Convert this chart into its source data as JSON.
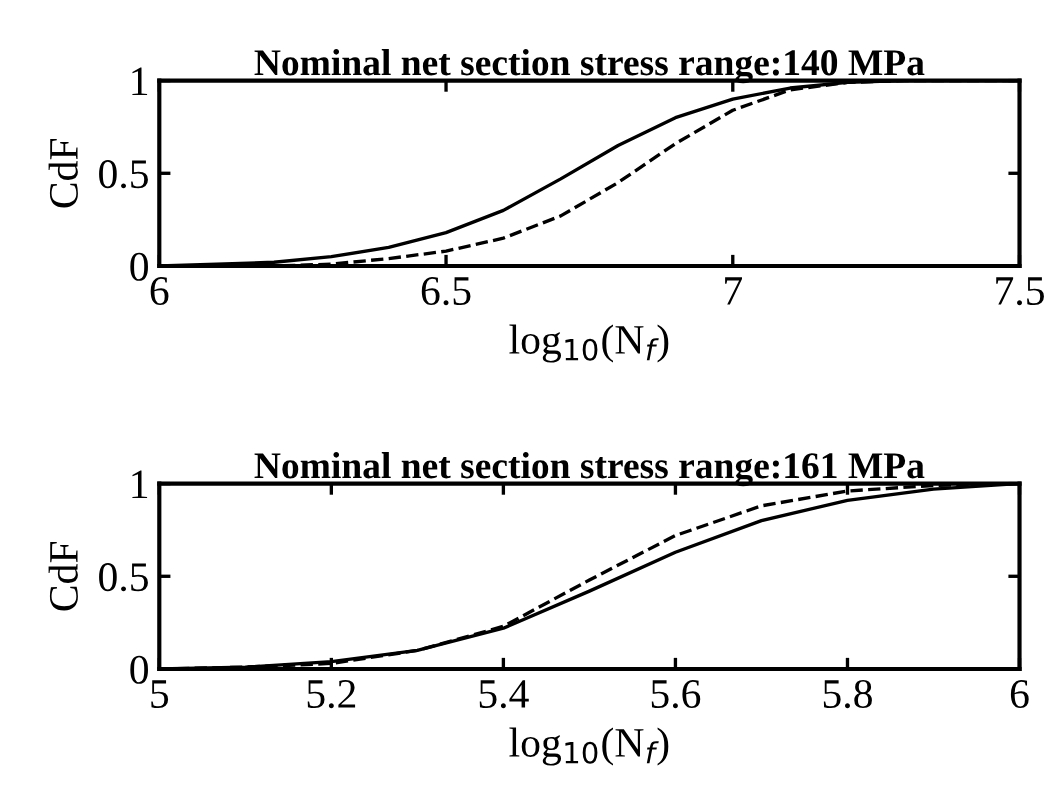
{
  "chart_data": [
    {
      "type": "line",
      "title": "Nominal net section stress range:140 MPa",
      "xlabel": "log$_{10}$(N$_{f}$)",
      "ylabel": "CdF",
      "xlim": [
        6,
        7.5
      ],
      "xticks": [
        6,
        6.5,
        7,
        7.5
      ],
      "ylim": [
        0,
        1
      ],
      "yticks": [
        0,
        0.5,
        1
      ],
      "grid": false,
      "legend": false,
      "series": [
        {
          "color": "#000000",
          "line_style": "solid",
          "x": [
            6.0,
            6.1,
            6.2,
            6.3,
            6.4,
            6.5,
            6.6,
            6.7,
            6.8,
            6.9,
            7.0,
            7.1,
            7.2,
            7.3,
            7.5
          ],
          "values": [
            0,
            0.01,
            0.02,
            0.05,
            0.1,
            0.18,
            0.3,
            0.47,
            0.65,
            0.8,
            0.9,
            0.96,
            0.99,
            1,
            1
          ]
        },
        {
          "color": "#000000",
          "line_style": "dashed",
          "x": [
            6.0,
            6.2,
            6.3,
            6.4,
            6.5,
            6.6,
            6.7,
            6.8,
            6.9,
            7.0,
            7.1,
            7.2,
            7.3,
            7.5
          ],
          "values": [
            0,
            0,
            0.01,
            0.04,
            0.08,
            0.15,
            0.27,
            0.45,
            0.66,
            0.84,
            0.95,
            0.99,
            1,
            1
          ]
        }
      ]
    },
    {
      "type": "line",
      "title": "Nominal net section stress range:161 MPa",
      "xlabel": "log$_{10}$(N$_{f}$)",
      "ylabel": "CdF",
      "xlim": [
        5,
        6
      ],
      "xticks": [
        5,
        5.2,
        5.4,
        5.6,
        5.8,
        6
      ],
      "ylim": [
        0,
        1
      ],
      "yticks": [
        0,
        0.5,
        1
      ],
      "grid": false,
      "legend": false,
      "series": [
        {
          "color": "#000000",
          "line_style": "solid",
          "x": [
            5.0,
            5.1,
            5.2,
            5.3,
            5.4,
            5.5,
            5.6,
            5.7,
            5.8,
            5.9,
            6.0
          ],
          "values": [
            0,
            0.01,
            0.04,
            0.1,
            0.22,
            0.42,
            0.63,
            0.8,
            0.91,
            0.97,
            1
          ]
        },
        {
          "color": "#000000",
          "line_style": "dashed",
          "x": [
            5.0,
            5.1,
            5.2,
            5.3,
            5.4,
            5.5,
            5.6,
            5.7,
            5.8,
            5.9,
            6.0
          ],
          "values": [
            0,
            0.01,
            0.03,
            0.1,
            0.23,
            0.48,
            0.72,
            0.88,
            0.96,
            0.99,
            1
          ]
        }
      ]
    }
  ]
}
